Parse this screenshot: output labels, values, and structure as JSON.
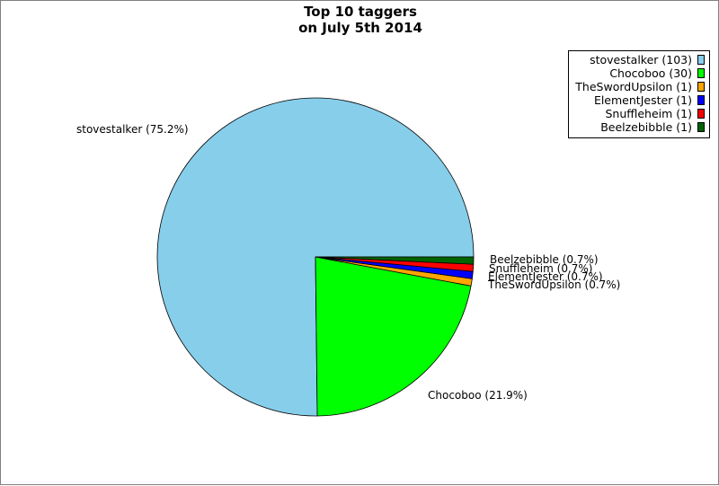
{
  "chart_data": {
    "type": "pie",
    "title": "Top 10 taggers",
    "subtitle": "on July 5th 2014",
    "legend_position": "top-right",
    "slices": [
      {
        "name": "stovestalker",
        "value": 103,
        "legend": "stovestalker (103)",
        "label": "stovestalker (75.2%)",
        "color": "#87ceeb"
      },
      {
        "name": "Chocoboo",
        "value": 30,
        "legend": "Chocoboo (30)",
        "label": "Chocoboo (21.9%)",
        "color": "#00ff00"
      },
      {
        "name": "TheSwordUpsilon",
        "value": 1,
        "legend": "TheSwordUpsilon (1)",
        "label": "TheSwordUpsilon (0.7%)",
        "color": "#ffa500"
      },
      {
        "name": "ElementJester",
        "value": 1,
        "legend": "ElementJester (1)",
        "label": "ElementJester (0.7%)",
        "color": "#0000ff"
      },
      {
        "name": "Snuffleheim",
        "value": 1,
        "legend": "Snuffleheim (1)",
        "label": "Snuffleheim (0.7%)",
        "color": "#ff0000"
      },
      {
        "name": "Beelzebibble",
        "value": 1,
        "legend": "Beelzebibble (1)",
        "label": "Beelzebibble (0.7%)",
        "color": "#006400"
      }
    ]
  }
}
